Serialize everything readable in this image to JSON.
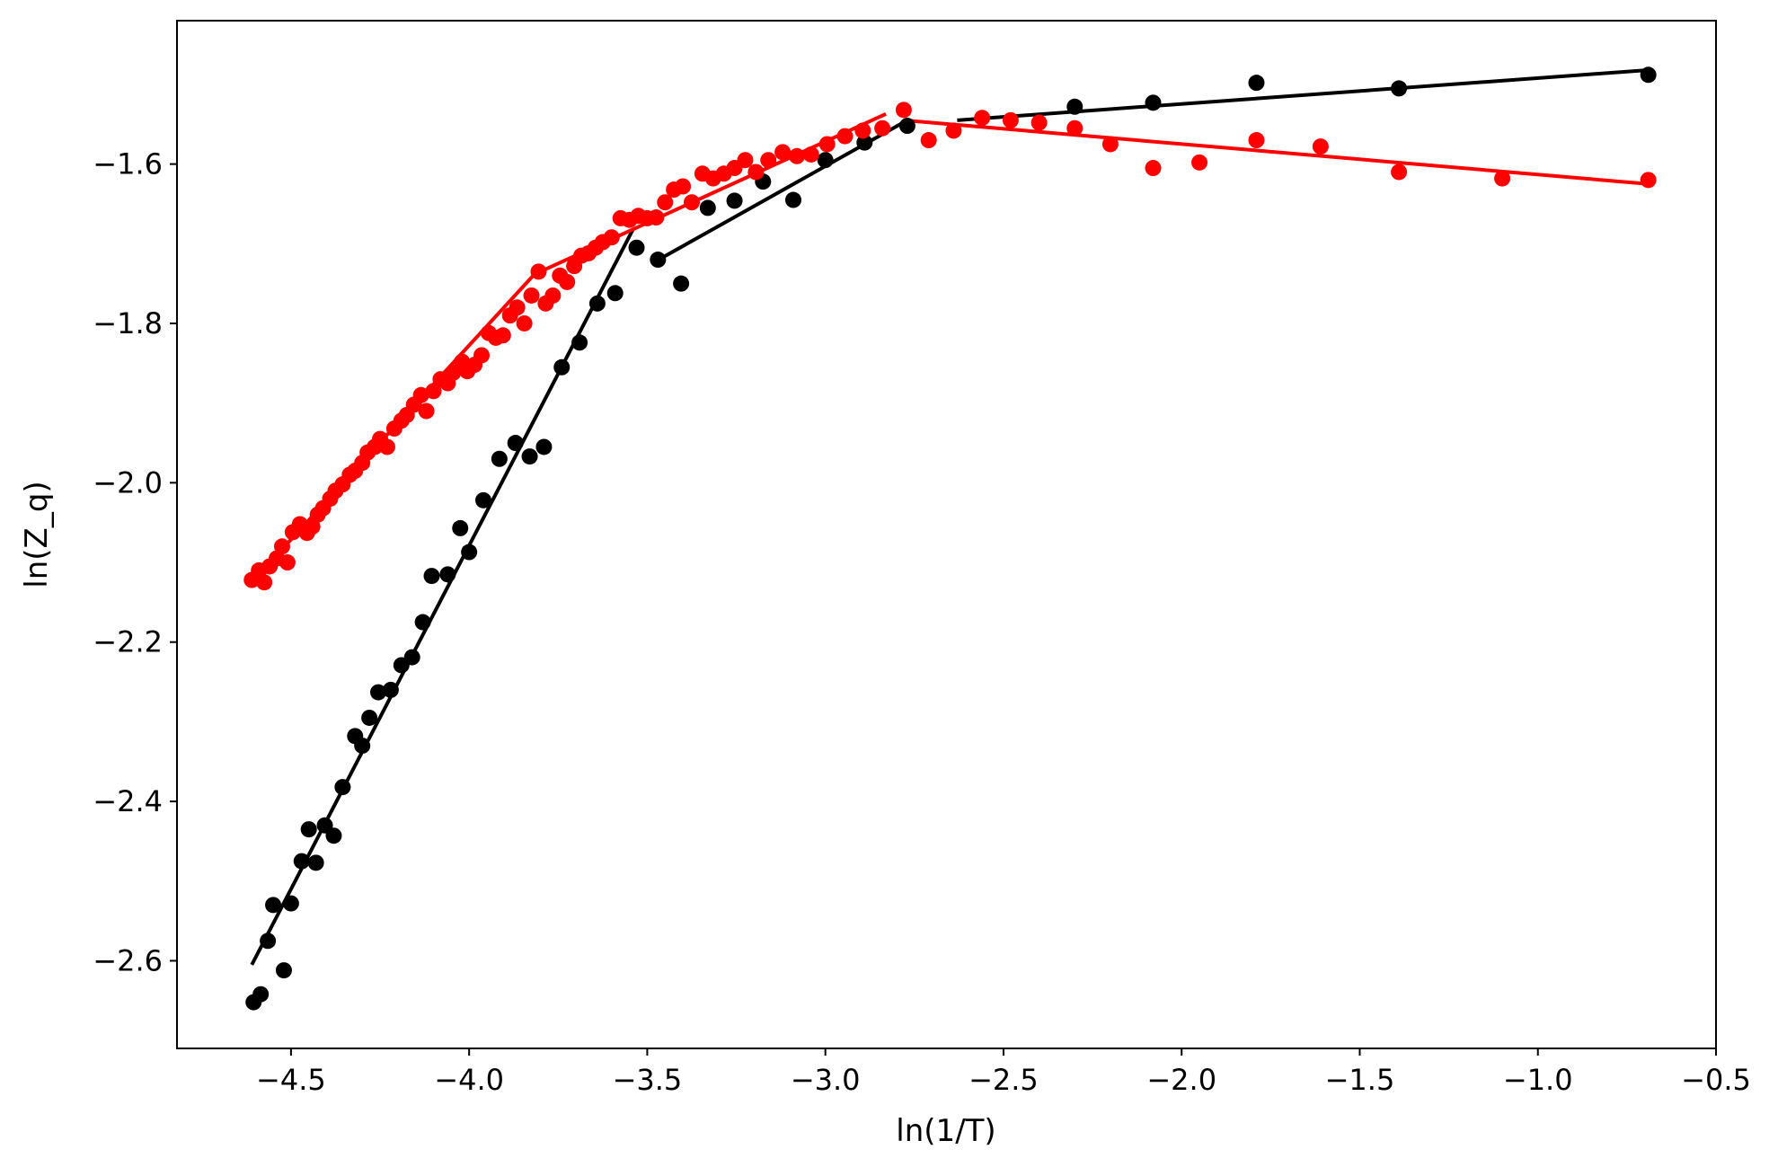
{
  "chart_data": {
    "type": "scatter",
    "title": "",
    "xlabel": "ln(1/T)",
    "ylabel": "ln(Z_q)",
    "xlim": [
      -4.82,
      -0.5
    ],
    "ylim": [
      -2.71,
      -1.42
    ],
    "xticks": [
      -4.5,
      -4.0,
      -3.5,
      -3.0,
      -2.5,
      -2.0,
      -1.5,
      -1.0,
      -0.5
    ],
    "xtick_labels": [
      "−4.5",
      "−4.0",
      "−3.5",
      "−3.0",
      "−2.5",
      "−2.0",
      "−1.5",
      "−1.0",
      "−0.5"
    ],
    "yticks": [
      -2.6,
      -2.4,
      -2.2,
      -2.0,
      -1.8,
      -1.6
    ],
    "ytick_labels": [
      "−2.6",
      "−2.4",
      "−2.2",
      "−2.0",
      "−1.8",
      "−1.6"
    ],
    "grid": false,
    "legend": "none",
    "series": [
      {
        "color": "#000000",
        "x": [
          -4.605,
          -4.585,
          -4.565,
          -4.55,
          -4.52,
          -4.5,
          -4.47,
          -4.45,
          -4.43,
          -4.405,
          -4.38,
          -4.355,
          -4.32,
          -4.3,
          -4.28,
          -4.255,
          -4.22,
          -4.19,
          -4.16,
          -4.13,
          -4.105,
          -4.06,
          -4.025,
          -4.0,
          -3.96,
          -3.915,
          -3.87,
          -3.83,
          -3.79,
          -3.74,
          -3.69,
          -3.64,
          -3.59,
          -3.53,
          -3.47,
          -3.405,
          -3.33,
          -3.255,
          -3.175,
          -3.09,
          -3.0,
          -2.89,
          -2.77,
          -2.3,
          -2.08,
          -1.79,
          -1.39,
          -0.69
        ],
        "y": [
          -2.652,
          -2.642,
          -2.575,
          -2.53,
          -2.612,
          -2.528,
          -2.475,
          -2.435,
          -2.477,
          -2.43,
          -2.443,
          -2.382,
          -2.318,
          -2.33,
          -2.295,
          -2.263,
          -2.26,
          -2.229,
          -2.219,
          -2.175,
          -2.117,
          -2.115,
          -2.057,
          -2.087,
          -2.022,
          -1.97,
          -1.95,
          -1.967,
          -1.955,
          -1.855,
          -1.824,
          -1.775,
          -1.762,
          -1.705,
          -1.72,
          -1.75,
          -1.655,
          -1.646,
          -1.622,
          -1.645,
          -1.595,
          -1.573,
          -1.552,
          -1.528,
          -1.523,
          -1.498,
          -1.505,
          -1.488
        ],
        "fit_lines": [
          {
            "x": [
              -4.61,
              -3.54
            ],
            "y": [
              -2.605,
              -1.682
            ]
          },
          {
            "x": [
              -3.46,
              -2.77
            ],
            "y": [
              -1.718,
              -1.545
            ]
          },
          {
            "x": [
              -2.63,
              -0.69
            ],
            "y": [
              -1.545,
              -1.482
            ]
          }
        ]
      },
      {
        "color": "#ff0000",
        "x": [
          -4.61,
          -4.59,
          -4.575,
          -4.56,
          -4.54,
          -4.525,
          -4.51,
          -4.495,
          -4.475,
          -4.455,
          -4.44,
          -4.425,
          -4.41,
          -4.39,
          -4.375,
          -4.355,
          -4.335,
          -4.32,
          -4.3,
          -4.285,
          -4.265,
          -4.25,
          -4.23,
          -4.21,
          -4.19,
          -4.175,
          -4.155,
          -4.135,
          -4.12,
          -4.1,
          -4.08,
          -4.06,
          -4.045,
          -4.02,
          -4.005,
          -3.985,
          -3.965,
          -3.945,
          -3.925,
          -3.905,
          -3.885,
          -3.865,
          -3.845,
          -3.825,
          -3.805,
          -3.785,
          -3.765,
          -3.745,
          -3.725,
          -3.705,
          -3.685,
          -3.665,
          -3.645,
          -3.625,
          -3.6,
          -3.575,
          -3.55,
          -3.525,
          -3.5,
          -3.475,
          -3.45,
          -3.425,
          -3.4,
          -3.375,
          -3.345,
          -3.315,
          -3.285,
          -3.255,
          -3.225,
          -3.195,
          -3.16,
          -3.12,
          -3.08,
          -3.04,
          -2.995,
          -2.945,
          -2.895,
          -2.84,
          -2.78,
          -2.71,
          -2.64,
          -2.56,
          -2.48,
          -2.4,
          -2.3,
          -2.2,
          -2.08,
          -1.95,
          -1.79,
          -1.61,
          -1.39,
          -1.1,
          -0.69
        ],
        "y": [
          -2.122,
          -2.11,
          -2.125,
          -2.105,
          -2.095,
          -2.08,
          -2.1,
          -2.062,
          -2.052,
          -2.063,
          -2.055,
          -2.04,
          -2.032,
          -2.02,
          -2.01,
          -2.002,
          -1.99,
          -1.985,
          -1.975,
          -1.962,
          -1.955,
          -1.945,
          -1.955,
          -1.932,
          -1.922,
          -1.915,
          -1.902,
          -1.89,
          -1.91,
          -1.885,
          -1.87,
          -1.875,
          -1.862,
          -1.848,
          -1.86,
          -1.852,
          -1.84,
          -1.812,
          -1.818,
          -1.815,
          -1.79,
          -1.78,
          -1.8,
          -1.765,
          -1.735,
          -1.775,
          -1.765,
          -1.74,
          -1.748,
          -1.728,
          -1.715,
          -1.712,
          -1.705,
          -1.698,
          -1.692,
          -1.668,
          -1.67,
          -1.665,
          -1.668,
          -1.667,
          -1.648,
          -1.632,
          -1.628,
          -1.648,
          -1.612,
          -1.618,
          -1.612,
          -1.605,
          -1.595,
          -1.61,
          -1.595,
          -1.585,
          -1.59,
          -1.588,
          -1.575,
          -1.565,
          -1.558,
          -1.555,
          -1.532,
          -1.57,
          -1.558,
          -1.542,
          -1.545,
          -1.548,
          -1.555,
          -1.575,
          -1.605,
          -1.598,
          -1.57,
          -1.578,
          -1.61,
          -1.618,
          -1.62
        ],
        "fit_lines": [
          {
            "x": [
              -4.6,
              -3.81
            ],
            "y": [
              -2.12,
              -1.735
            ]
          },
          {
            "x": [
              -3.8,
              -2.83
            ],
            "y": [
              -1.735,
              -1.537
            ]
          },
          {
            "x": [
              -2.78,
              -0.69
            ],
            "y": [
              -1.545,
              -1.625
            ]
          }
        ]
      }
    ]
  }
}
